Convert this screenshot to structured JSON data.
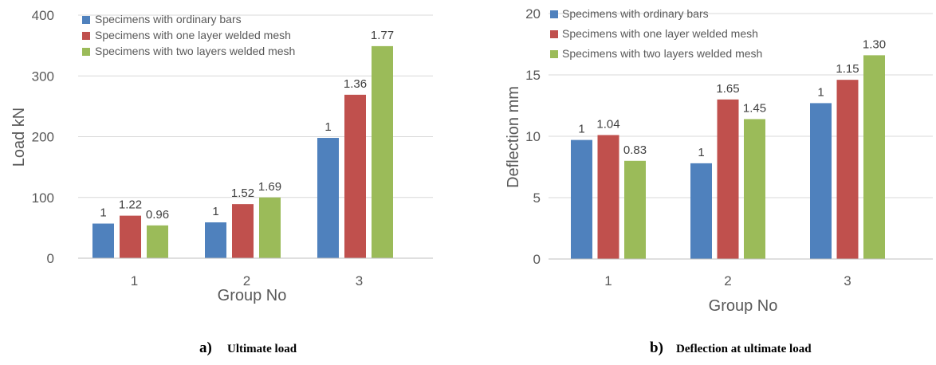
{
  "colors": {
    "ordinary": "#4F81BD",
    "one_layer": "#C0504D",
    "two_layers": "#9BBB59",
    "grid": "#D9D9D9",
    "axis": "#BFBFBF"
  },
  "chart_data": [
    {
      "type": "bar",
      "xlabel": "Group No",
      "ylabel": "Load kN",
      "ylim": [
        0,
        400
      ],
      "yticks": [
        0,
        100,
        200,
        300,
        400
      ],
      "categories": [
        "1",
        "2",
        "3"
      ],
      "legend_position": "top-left",
      "series": [
        {
          "name": "Specimens with ordinary bars",
          "values": [
            57,
            59,
            198
          ],
          "labels": [
            "1",
            "1",
            "1"
          ]
        },
        {
          "name": "Specimens with one layer welded mesh",
          "values": [
            70,
            89,
            269
          ],
          "labels": [
            "1.22",
            "1.52",
            "1.36"
          ]
        },
        {
          "name": "Specimens with two layers welded mesh",
          "values": [
            54,
            100,
            349
          ],
          "labels": [
            "0.96",
            "1.69",
            "1.77"
          ]
        }
      ],
      "caption_letter": "a)",
      "caption_text": "Ultimate load"
    },
    {
      "type": "bar",
      "xlabel": "Group No",
      "ylabel": "Deflection  mm",
      "ylim": [
        0,
        20
      ],
      "yticks": [
        0,
        5,
        10,
        15,
        20
      ],
      "categories": [
        "1",
        "2",
        "3"
      ],
      "legend_position": "top-left",
      "series": [
        {
          "name": "Specimens with ordinary bars",
          "values": [
            9.7,
            7.8,
            12.7
          ],
          "labels": [
            "1",
            "1",
            "1"
          ]
        },
        {
          "name": "Specimens with one layer welded mesh",
          "values": [
            10.1,
            13.0,
            14.6
          ],
          "labels": [
            "1.04",
            "1.65",
            "1.15"
          ]
        },
        {
          "name": "Specimens with two layers welded mesh",
          "values": [
            8.0,
            11.4,
            16.6
          ],
          "labels": [
            "0.83",
            "1.45",
            "1.30"
          ]
        }
      ],
      "caption_letter": "b)",
      "caption_text": "Deflection at ultimate load"
    }
  ]
}
